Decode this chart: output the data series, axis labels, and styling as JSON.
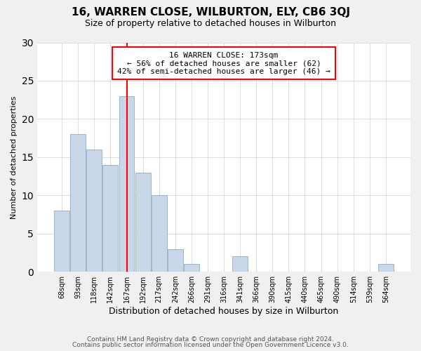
{
  "title": "16, WARREN CLOSE, WILBURTON, ELY, CB6 3QJ",
  "subtitle": "Size of property relative to detached houses in Wilburton",
  "xlabel": "Distribution of detached houses by size in Wilburton",
  "ylabel": "Number of detached properties",
  "footer_line1": "Contains HM Land Registry data © Crown copyright and database right 2024.",
  "footer_line2": "Contains public sector information licensed under the Open Government Licence v3.0.",
  "categories": [
    "68sqm",
    "93sqm",
    "118sqm",
    "142sqm",
    "167sqm",
    "192sqm",
    "217sqm",
    "242sqm",
    "266sqm",
    "291sqm",
    "316sqm",
    "341sqm",
    "366sqm",
    "390sqm",
    "415sqm",
    "440sqm",
    "465sqm",
    "490sqm",
    "514sqm",
    "539sqm",
    "564sqm"
  ],
  "values": [
    8,
    18,
    16,
    14,
    23,
    13,
    10,
    3,
    1,
    0,
    0,
    2,
    0,
    0,
    0,
    0,
    0,
    0,
    0,
    0,
    1
  ],
  "bar_color": "#c8d8e8",
  "bar_edge_color": "#a0b8cc",
  "highlight_line_color": "red",
  "annotation_title": "16 WARREN CLOSE: 173sqm",
  "annotation_line1": "← 56% of detached houses are smaller (62)",
  "annotation_line2": "42% of semi-detached houses are larger (46) →",
  "annotation_box_color": "white",
  "annotation_box_edge_color": "red",
  "ylim": [
    0,
    30
  ],
  "yticks": [
    0,
    5,
    10,
    15,
    20,
    25,
    30
  ],
  "background_color": "#f0f0f0",
  "plot_background_color": "white",
  "grid_color": "#d0d0d0"
}
